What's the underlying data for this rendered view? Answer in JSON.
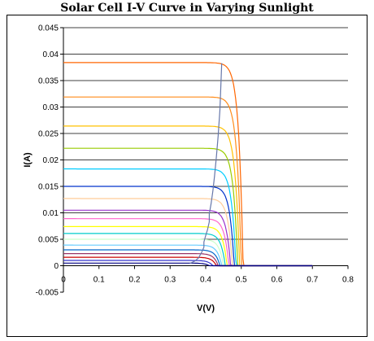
{
  "chart_data": {
    "type": "line",
    "title": "Solar Cell I-V Curve in Varying Sunlight",
    "xlabel": "V(V)",
    "ylabel": "I(A)",
    "xlim": [
      0,
      0.8
    ],
    "ylim": [
      -0.005,
      0.045
    ],
    "x_ticks": [
      "0",
      "0.1",
      "0.2",
      "0.3",
      "0.4",
      "0.5",
      "0.6",
      "0.7",
      "0.8"
    ],
    "y_ticks": [
      "-0.005",
      "0",
      "0.005",
      "0.01",
      "0.015",
      "0.02",
      "0.025",
      "0.03",
      "0.035",
      "0.04",
      "0.045"
    ],
    "grid": "horizontal major gridlines",
    "legend": "none",
    "series": [
      {
        "isc": 0.0384,
        "voc": 0.505,
        "color": "#ff6600"
      },
      {
        "isc": 0.0319,
        "voc": 0.5,
        "color": "#ff8c1a"
      },
      {
        "isc": 0.0264,
        "voc": 0.495,
        "color": "#ffc000"
      },
      {
        "isc": 0.0222,
        "voc": 0.49,
        "color": "#99cc00"
      },
      {
        "isc": 0.0183,
        "voc": 0.485,
        "color": "#00ccff"
      },
      {
        "isc": 0.015,
        "voc": 0.48,
        "color": "#0033cc"
      },
      {
        "isc": 0.0127,
        "voc": 0.475,
        "color": "#ffcc99"
      },
      {
        "isc": 0.0105,
        "voc": 0.47,
        "color": "#9933cc"
      },
      {
        "isc": 0.0089,
        "voc": 0.465,
        "color": "#ff66cc"
      },
      {
        "isc": 0.0074,
        "voc": 0.46,
        "color": "#ffff00"
      },
      {
        "isc": 0.0061,
        "voc": 0.455,
        "color": "#00cccc"
      },
      {
        "isc": 0.005,
        "voc": 0.45,
        "color": "#ccffcc"
      },
      {
        "isc": 0.0039,
        "voc": 0.445,
        "color": "#66ccff"
      },
      {
        "isc": 0.003,
        "voc": 0.44,
        "color": "#0066cc"
      },
      {
        "isc": 0.0023,
        "voc": 0.435,
        "color": "#993366"
      },
      {
        "isc": 0.0016,
        "voc": 0.43,
        "color": "#cc0000"
      },
      {
        "isc": 0.001,
        "voc": 0.42,
        "color": "#3333cc"
      },
      {
        "isc": 0.0005,
        "voc": 0.41,
        "color": "#000080"
      }
    ],
    "mpp_trace": {
      "color": "#6677aa",
      "v": [
        0.355,
        0.37,
        0.38,
        0.385,
        0.39,
        0.395,
        0.395,
        0.4,
        0.405,
        0.41,
        0.41,
        0.415,
        0.42,
        0.425,
        0.43,
        0.435,
        0.44,
        0.445
      ],
      "i": [
        0.0004,
        0.0009,
        0.0015,
        0.0021,
        0.0027,
        0.0035,
        0.0045,
        0.0057,
        0.0068,
        0.0083,
        0.0098,
        0.0117,
        0.0141,
        0.017,
        0.0205,
        0.0245,
        0.0295,
        0.0383
      ]
    }
  }
}
